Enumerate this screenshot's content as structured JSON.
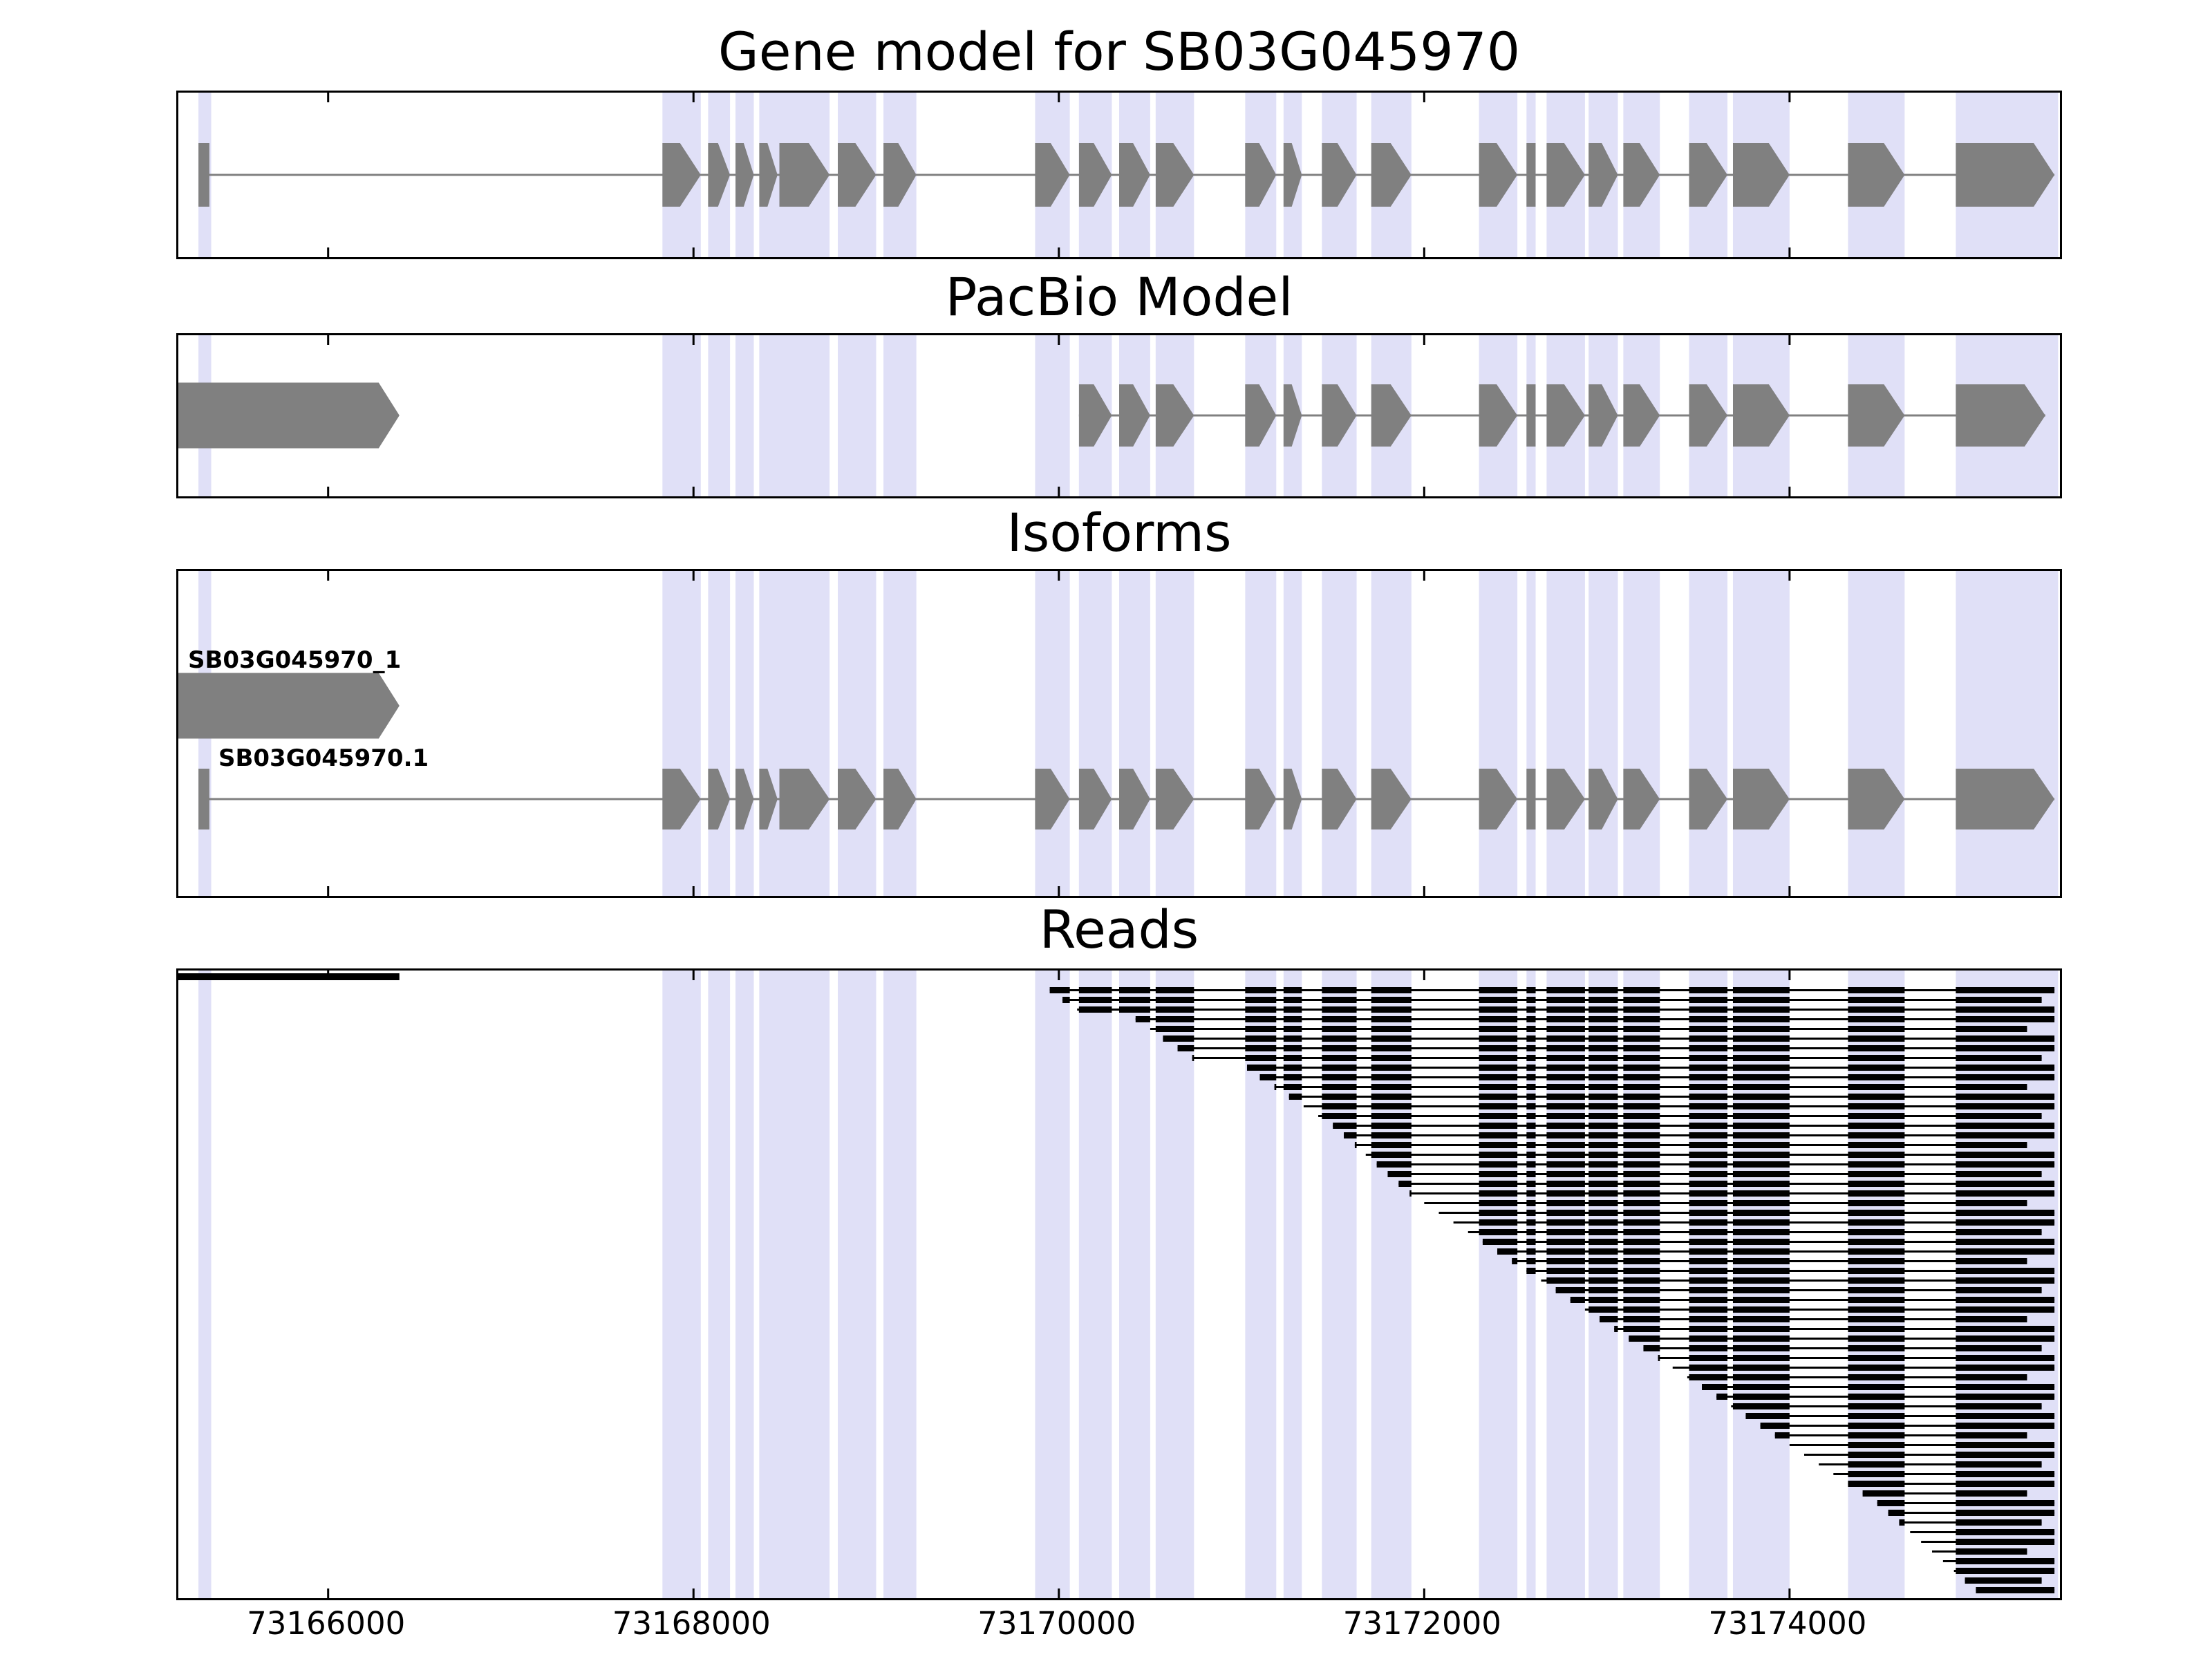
{
  "figure": {
    "background": "#ffffff"
  },
  "chart_data": {
    "type": "genome-browser",
    "gene_id": "SB03G045970",
    "x_axis": {
      "min": 73165180,
      "max": 73175480,
      "ticks": [
        73166000,
        73168000,
        73170000,
        73172000,
        73174000
      ],
      "tick_labels": [
        "73166000",
        "73168000",
        "73170000",
        "73172000",
        "73174000"
      ]
    },
    "colors": {
      "exon": "#808080",
      "intron_line": "#808080",
      "highlight_band": "#e0e0f7",
      "read": "#000000",
      "axis": "#000000"
    },
    "highlight_bands": [
      [
        73165290,
        73165360
      ],
      [
        73167830,
        73168040
      ],
      [
        73168080,
        73168200
      ],
      [
        73168230,
        73168330
      ],
      [
        73168360,
        73168745
      ],
      [
        73168790,
        73169000
      ],
      [
        73169040,
        73169220
      ],
      [
        73169870,
        73170060
      ],
      [
        73170110,
        73170290
      ],
      [
        73170330,
        73170500
      ],
      [
        73170530,
        73170740
      ],
      [
        73171020,
        73171190
      ],
      [
        73171230,
        73171330
      ],
      [
        73171440,
        73171630
      ],
      [
        73171710,
        73171930
      ],
      [
        73172300,
        73172510
      ],
      [
        73172560,
        73172610
      ],
      [
        73172670,
        73172880
      ],
      [
        73172900,
        73173060
      ],
      [
        73173090,
        73173290
      ],
      [
        73173450,
        73173660
      ],
      [
        73173690,
        73174000
      ],
      [
        73174320,
        73174630
      ],
      [
        73174910,
        73175470
      ]
    ],
    "panels": [
      {
        "title": "Gene model for SB03G045970",
        "tracks": [
          {
            "type": "gene",
            "line": [
              73165320,
              73175450
            ],
            "exons": [
              [
                73165290,
                73165350
              ],
              [
                73167830,
                73168040
              ],
              [
                73168080,
                73168200
              ],
              [
                73168230,
                73168330
              ],
              [
                73168360,
                73168460
              ],
              [
                73168470,
                73168745
              ],
              [
                73168790,
                73169000
              ],
              [
                73169040,
                73169220
              ],
              [
                73169870,
                73170060
              ],
              [
                73170110,
                73170290
              ],
              [
                73170330,
                73170500
              ],
              [
                73170530,
                73170740
              ],
              [
                73171020,
                73171190
              ],
              [
                73171230,
                73171330
              ],
              [
                73171440,
                73171630
              ],
              [
                73171710,
                73171930
              ],
              [
                73172300,
                73172510
              ],
              [
                73172560,
                73172610
              ],
              [
                73172670,
                73172880
              ],
              [
                73172900,
                73173060
              ],
              [
                73173090,
                73173290
              ],
              [
                73173450,
                73173660
              ],
              [
                73173690,
                73174000
              ],
              [
                73174320,
                73174630
              ],
              [
                73174910,
                73175450
              ]
            ]
          }
        ]
      },
      {
        "title": "PacBio Model",
        "tracks": [
          {
            "type": "gene",
            "exons": [
              [
                73165180,
                73166390
              ]
            ]
          },
          {
            "type": "gene",
            "line": [
              73170110,
              73175400
            ],
            "exons": [
              [
                73170110,
                73170290
              ],
              [
                73170330,
                73170500
              ],
              [
                73170530,
                73170740
              ],
              [
                73171020,
                73171190
              ],
              [
                73171230,
                73171330
              ],
              [
                73171440,
                73171630
              ],
              [
                73171710,
                73171930
              ],
              [
                73172300,
                73172510
              ],
              [
                73172560,
                73172610
              ],
              [
                73172670,
                73172880
              ],
              [
                73172900,
                73173060
              ],
              [
                73173090,
                73173290
              ],
              [
                73173450,
                73173660
              ],
              [
                73173690,
                73174000
              ],
              [
                73174320,
                73174630
              ],
              [
                73174910,
                73175400
              ]
            ]
          }
        ]
      },
      {
        "title": "Isoforms",
        "tracks": [
          {
            "type": "gene",
            "label": "SB03G045970_1",
            "exons": [
              [
                73165180,
                73166390
              ]
            ]
          },
          {
            "type": "gene",
            "label": "SB03G045970.1",
            "line": [
              73165320,
              73175450
            ],
            "exons": [
              [
                73165290,
                73165350
              ],
              [
                73167830,
                73168040
              ],
              [
                73168080,
                73168200
              ],
              [
                73168230,
                73168330
              ],
              [
                73168360,
                73168460
              ],
              [
                73168470,
                73168745
              ],
              [
                73168790,
                73169000
              ],
              [
                73169040,
                73169220
              ],
              [
                73169870,
                73170060
              ],
              [
                73170110,
                73170290
              ],
              [
                73170330,
                73170500
              ],
              [
                73170530,
                73170740
              ],
              [
                73171020,
                73171190
              ],
              [
                73171230,
                73171330
              ],
              [
                73171440,
                73171630
              ],
              [
                73171710,
                73171930
              ],
              [
                73172300,
                73172510
              ],
              [
                73172560,
                73172610
              ],
              [
                73172670,
                73172880
              ],
              [
                73172900,
                73173060
              ],
              [
                73173090,
                73173290
              ],
              [
                73173450,
                73173660
              ],
              [
                73173690,
                73174000
              ],
              [
                73174320,
                73174630
              ],
              [
                73174910,
                73175450
              ]
            ]
          }
        ]
      },
      {
        "title": "Reads",
        "reads": [
          [
            73165180,
            73166390
          ],
          [
            73169950,
            73175450
          ],
          [
            73170020,
            73175380
          ],
          [
            73170100,
            73175450
          ],
          [
            73170420,
            73175450
          ],
          [
            73170500,
            73175300
          ],
          [
            73170570,
            73175450
          ],
          [
            73170650,
            73175450
          ],
          [
            73170730,
            73175380
          ],
          [
            73171030,
            73175450
          ],
          [
            73171100,
            73175450
          ],
          [
            73171180,
            73175300
          ],
          [
            73171260,
            73175450
          ],
          [
            73171340,
            73175450
          ],
          [
            73171420,
            73175380
          ],
          [
            73171500,
            73175450
          ],
          [
            73171560,
            73175450
          ],
          [
            73171620,
            73175300
          ],
          [
            73171680,
            73175450
          ],
          [
            73171740,
            73175450
          ],
          [
            73171800,
            73175380
          ],
          [
            73171860,
            73175450
          ],
          [
            73171920,
            73175450
          ],
          [
            73172000,
            73175300
          ],
          [
            73172080,
            73175450
          ],
          [
            73172160,
            73175450
          ],
          [
            73172240,
            73175380
          ],
          [
            73172320,
            73175450
          ],
          [
            73172400,
            73175450
          ],
          [
            73172480,
            73175300
          ],
          [
            73172560,
            73175450
          ],
          [
            73172640,
            73175450
          ],
          [
            73172720,
            73175380
          ],
          [
            73172800,
            73175450
          ],
          [
            73172880,
            73175450
          ],
          [
            73172960,
            73175300
          ],
          [
            73173040,
            73175450
          ],
          [
            73173120,
            73175450
          ],
          [
            73173200,
            73175380
          ],
          [
            73173280,
            73175450
          ],
          [
            73173360,
            73175450
          ],
          [
            73173440,
            73175300
          ],
          [
            73173520,
            73175450
          ],
          [
            73173600,
            73175450
          ],
          [
            73173680,
            73175380
          ],
          [
            73173760,
            73175450
          ],
          [
            73173840,
            73175450
          ],
          [
            73173920,
            73175300
          ],
          [
            73174000,
            73175450
          ],
          [
            73174080,
            73175450
          ],
          [
            73174160,
            73175380
          ],
          [
            73174240,
            73175450
          ],
          [
            73174320,
            73175450
          ],
          [
            73174400,
            73175300
          ],
          [
            73174480,
            73175450
          ],
          [
            73174540,
            73175450
          ],
          [
            73174600,
            73175380
          ],
          [
            73174660,
            73175450
          ],
          [
            73174720,
            73175450
          ],
          [
            73174780,
            73175300
          ],
          [
            73174840,
            73175450
          ],
          [
            73174900,
            73175450
          ],
          [
            73174960,
            73175380
          ],
          [
            73175020,
            73175450
          ]
        ]
      }
    ]
  }
}
